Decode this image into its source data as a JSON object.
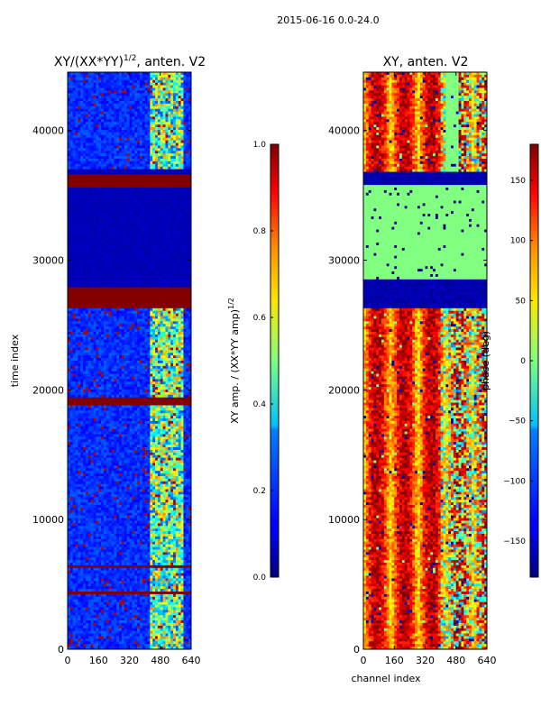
{
  "figure": {
    "suptitle": "2015-06-16 0.0-24.0"
  },
  "chart_data": [
    {
      "type": "heatmap",
      "title": "XY/(XX*YY)",
      "title_sup": "1/2",
      "title_suffix": ", anten. V2",
      "xlabel": "",
      "ylabel": "time index",
      "xlim": [
        0,
        640
      ],
      "ylim": [
        0,
        44500
      ],
      "xticks": [
        0,
        160,
        320,
        480,
        640
      ],
      "yticks": [
        0,
        10000,
        20000,
        30000,
        40000
      ],
      "colormap": "jet",
      "colorbar": {
        "label": "XY amp. / (XX*YY amp)",
        "label_sup": "1/2",
        "range": [
          0.0,
          1.0
        ],
        "ticks": [
          "0.0",
          "0.2",
          "0.4",
          "0.6",
          "0.8",
          "1.0"
        ]
      },
      "saturated_time_bands": [
        [
          26200,
          28000
        ],
        [
          35600,
          36600
        ],
        [
          18800,
          19400
        ],
        [
          6200,
          6500
        ],
        [
          4200,
          4500
        ]
      ],
      "low_background_bands": [
        [
          28000,
          35600
        ],
        [
          36600,
          37000
        ]
      ],
      "bright_channel_range": [
        420,
        600
      ],
      "grid": false
    },
    {
      "type": "heatmap",
      "title": "XY, anten. V2",
      "xlabel": "channel index",
      "ylabel": "",
      "xlim": [
        0,
        640
      ],
      "ylim": [
        0,
        44500
      ],
      "xticks": [
        0,
        160,
        320,
        480,
        640
      ],
      "yticks": [
        0,
        10000,
        20000,
        30000,
        40000
      ],
      "colormap": "jet",
      "colorbar": {
        "label": "phase (deg)",
        "range": [
          -180,
          180
        ],
        "ticks": [
          "−150",
          "−100",
          "−50",
          "0",
          "50",
          "100",
          "150"
        ]
      },
      "zero_phase_bands": [
        [
          28500,
          35800
        ]
      ],
      "low_phase_bands": [
        [
          26200,
          28500
        ],
        [
          35800,
          36900
        ]
      ],
      "grid": false
    }
  ]
}
